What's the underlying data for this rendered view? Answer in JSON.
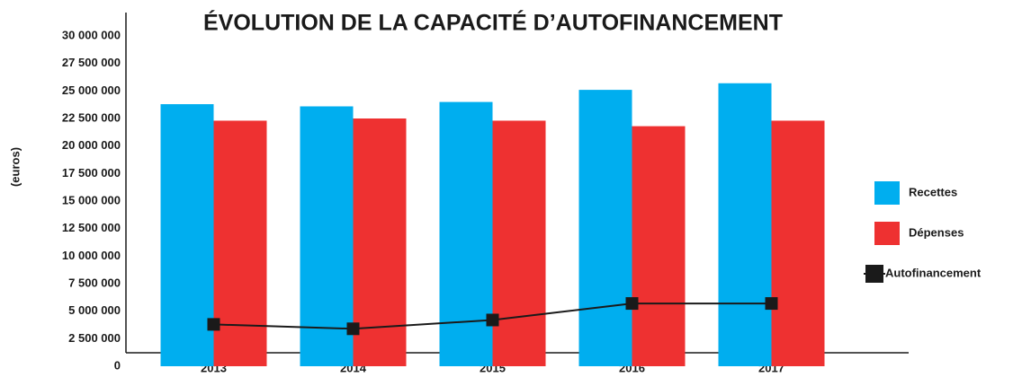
{
  "chart_data": {
    "type": "bar_line",
    "title": "ÉVOLUTION DE LA CAPACITÉ D’AUTOFINANCEMENT",
    "y_label": "(euros)",
    "categories": [
      "2013",
      "2014",
      "2015",
      "2016",
      "2017"
    ],
    "series": [
      {
        "name": "Recettes",
        "type": "bar",
        "color": "#00aeef",
        "values": [
          23800000,
          23600000,
          24000000,
          25100000,
          25700000
        ]
      },
      {
        "name": "Dépenses",
        "type": "bar",
        "color": "#ee3131",
        "values": [
          22300000,
          22500000,
          22300000,
          21800000,
          22300000
        ]
      },
      {
        "name": "Autofinancement",
        "type": "line",
        "color": "#1a1a1a",
        "values": [
          3800000,
          3400000,
          4200000,
          5700000,
          5700000
        ]
      }
    ],
    "ylim": [
      0,
      30000000
    ],
    "yticks": [
      {
        "value": 0,
        "label": "0"
      },
      {
        "value": 2500000,
        "label": "2 500 000"
      },
      {
        "value": 5000000,
        "label": "5 000 000"
      },
      {
        "value": 7500000,
        "label": "7 500 000"
      },
      {
        "value": 10000000,
        "label": "10 000 000"
      },
      {
        "value": 12500000,
        "label": "12 500 000"
      },
      {
        "value": 15000000,
        "label": "15 000 000"
      },
      {
        "value": 17500000,
        "label": "17 500 000"
      },
      {
        "value": 20000000,
        "label": "20 000 000"
      },
      {
        "value": 22500000,
        "label": "22 500 000"
      },
      {
        "value": 25000000,
        "label": "25 000 000"
      },
      {
        "value": 27500000,
        "label": "27 500 000"
      },
      {
        "value": 30000000,
        "label": "30 000 000"
      }
    ],
    "legend": "right"
  }
}
